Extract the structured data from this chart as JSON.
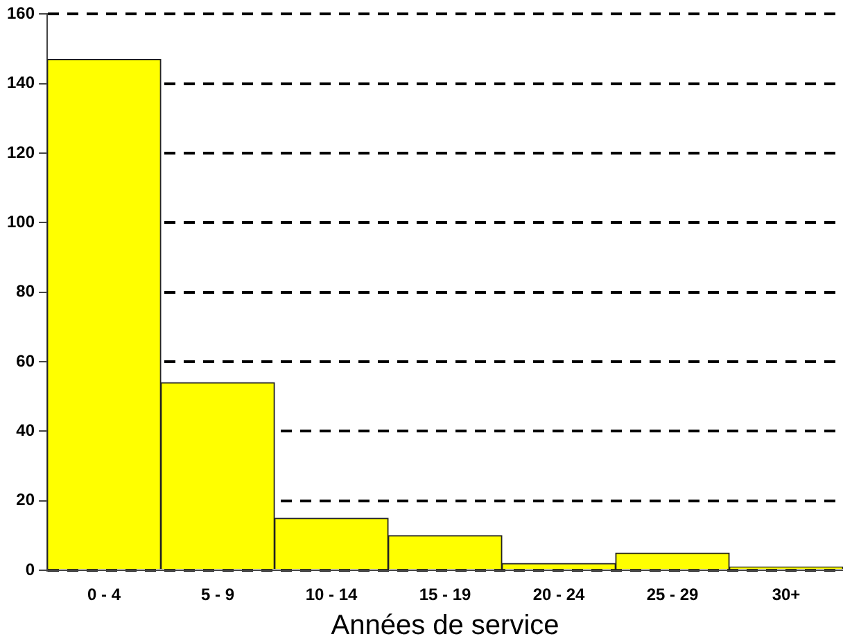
{
  "chart_data": {
    "type": "bar",
    "xlabel": "Années de service",
    "categories": [
      "0 - 4",
      "5 - 9",
      "10 - 14",
      "15 - 19",
      "20 - 24",
      "25 - 29",
      "30+"
    ],
    "values": [
      147,
      54,
      15,
      10,
      2,
      5,
      1
    ],
    "color": "#ffff00",
    "ylim": [
      0,
      160
    ],
    "yticks": [
      0,
      20,
      40,
      60,
      80,
      100,
      120,
      140,
      160
    ],
    "grid": "y",
    "legend": false
  }
}
